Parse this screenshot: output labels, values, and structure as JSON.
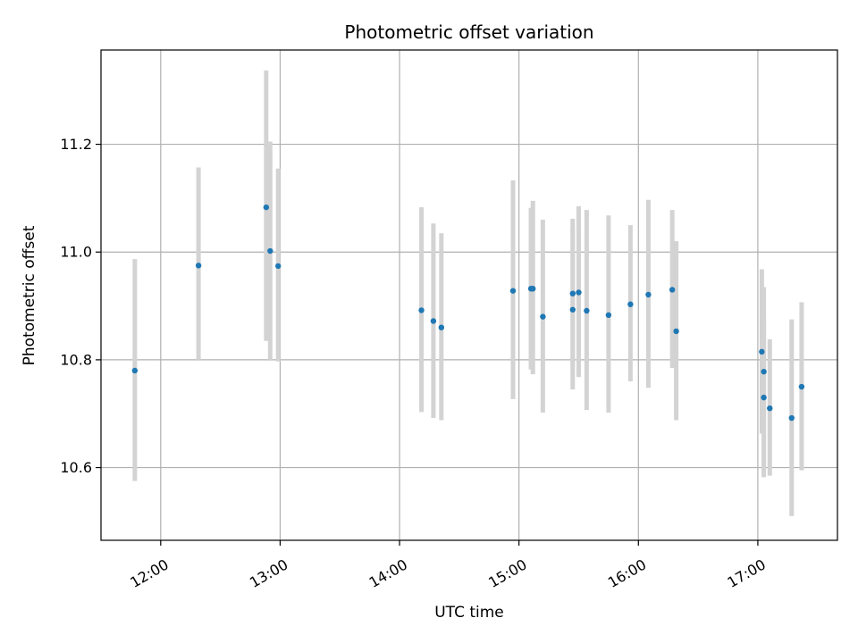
{
  "chart_data": {
    "type": "scatter",
    "title": "Photometric offset variation",
    "xlabel": "UTC time",
    "ylabel": "Photometric offset",
    "xlim": [
      "11:30",
      "17:40"
    ],
    "ylim": [
      10.465,
      11.375
    ],
    "x_ticks": [
      "12:00",
      "13:00",
      "14:00",
      "15:00",
      "16:00",
      "17:00"
    ],
    "y_ticks": [
      "10.6",
      "10.8",
      "11.0",
      "11.2"
    ],
    "grid": true,
    "colors": {
      "point": "#1f77b4",
      "errorbar": "#d3d3d3",
      "grid": "#b0b0b0"
    },
    "points": [
      {
        "x": "11:47",
        "y": 10.78,
        "lo": 10.575,
        "hi": 10.987
      },
      {
        "x": "12:19",
        "y": 10.975,
        "lo": 10.8,
        "hi": 11.157
      },
      {
        "x": "12:53",
        "y": 11.083,
        "lo": 10.835,
        "hi": 11.337
      },
      {
        "x": "12:55",
        "y": 11.002,
        "lo": 10.8,
        "hi": 11.205
      },
      {
        "x": "12:59",
        "y": 10.974,
        "lo": 10.797,
        "hi": 11.155
      },
      {
        "x": "14:11",
        "y": 10.892,
        "lo": 10.703,
        "hi": 11.083
      },
      {
        "x": "14:17",
        "y": 10.872,
        "lo": 10.692,
        "hi": 11.053
      },
      {
        "x": "14:21",
        "y": 10.86,
        "lo": 10.688,
        "hi": 11.035
      },
      {
        "x": "14:57",
        "y": 10.928,
        "lo": 10.727,
        "hi": 11.133
      },
      {
        "x": "15:06",
        "y": 10.932,
        "lo": 10.782,
        "hi": 11.082
      },
      {
        "x": "15:07",
        "y": 10.932,
        "lo": 10.773,
        "hi": 11.095
      },
      {
        "x": "15:12",
        "y": 10.88,
        "lo": 10.702,
        "hi": 11.06
      },
      {
        "x": "15:27",
        "y": 10.923,
        "lo": 10.783,
        "hi": 11.062
      },
      {
        "x": "15:27",
        "y": 10.893,
        "lo": 10.745,
        "hi": 11.047
      },
      {
        "x": "15:30",
        "y": 10.925,
        "lo": 10.768,
        "hi": 11.085
      },
      {
        "x": "15:34",
        "y": 10.891,
        "lo": 10.707,
        "hi": 11.078
      },
      {
        "x": "15:45",
        "y": 10.883,
        "lo": 10.702,
        "hi": 11.068
      },
      {
        "x": "15:56",
        "y": 10.903,
        "lo": 10.76,
        "hi": 11.05
      },
      {
        "x": "16:05",
        "y": 10.921,
        "lo": 10.748,
        "hi": 11.097
      },
      {
        "x": "16:17",
        "y": 10.93,
        "lo": 10.785,
        "hi": 11.078
      },
      {
        "x": "16:19",
        "y": 10.853,
        "lo": 10.688,
        "hi": 11.02
      },
      {
        "x": "17:02",
        "y": 10.815,
        "lo": 10.663,
        "hi": 10.968
      },
      {
        "x": "17:03",
        "y": 10.778,
        "lo": 10.582,
        "hi": 10.935
      },
      {
        "x": "17:03",
        "y": 10.73,
        "lo": 10.585,
        "hi": 10.877
      },
      {
        "x": "17:06",
        "y": 10.71,
        "lo": 10.585,
        "hi": 10.838
      },
      {
        "x": "17:17",
        "y": 10.692,
        "lo": 10.51,
        "hi": 10.875
      },
      {
        "x": "17:22",
        "y": 10.75,
        "lo": 10.595,
        "hi": 10.907
      }
    ]
  }
}
